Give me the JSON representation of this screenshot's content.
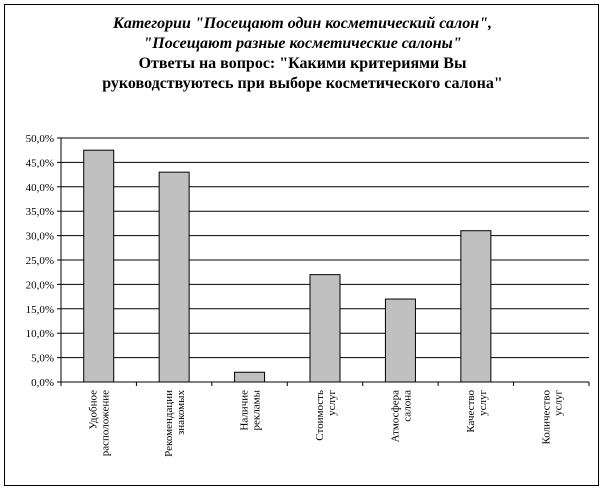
{
  "chart_data": {
    "type": "bar",
    "title_lines": [
      "Категории \"Посещают один косметический салон\",",
      "\"Посещают разные косметические салоны\"",
      "Ответы на вопрос: \"Какими критериями Вы",
      "руководствуютесь при  выборе косметического салона\""
    ],
    "categories": [
      [
        "Удобное",
        "расположение"
      ],
      [
        "Рекомендации",
        "знакомых"
      ],
      [
        "Наличие",
        "рекламы"
      ],
      [
        "Стоимость",
        "услуг"
      ],
      [
        "Атмосфера",
        "салона"
      ],
      [
        "Качество",
        "услуг"
      ],
      [
        "Количество",
        "услуг"
      ]
    ],
    "values": [
      47.5,
      43.0,
      2.0,
      22.0,
      17.0,
      31.0,
      0.0
    ],
    "ylim": [
      0,
      50
    ],
    "ytick_step": 5,
    "ytick_labels": [
      "0,0%",
      "5,0%",
      "10,0%",
      "15,0%",
      "20,0%",
      "25,0%",
      "30,0%",
      "35,0%",
      "40,0%",
      "45,0%",
      "50,0%"
    ],
    "grid": true,
    "colors": {
      "bar_fill": "#c0c0c0",
      "bar_stroke": "#000000",
      "gridline": "#000000"
    }
  }
}
